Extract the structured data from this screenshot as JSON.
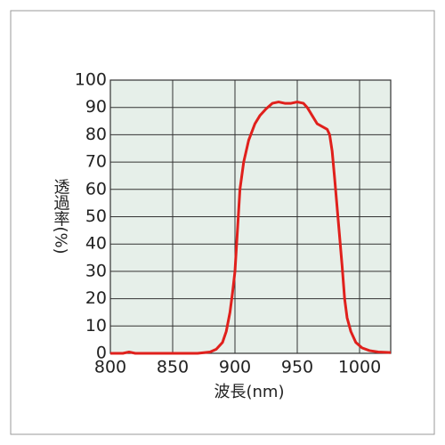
{
  "chart_data": {
    "type": "line",
    "xlabel": "波長(nm)",
    "ylabel": "透過率(%)",
    "x": [
      800,
      810,
      815,
      820,
      850,
      870,
      880,
      885,
      890,
      893,
      896,
      898,
      900,
      902,
      904,
      907,
      911,
      916,
      920,
      925,
      930,
      935,
      940,
      945,
      950,
      955,
      958,
      962,
      966,
      970,
      974,
      976,
      978,
      980,
      983,
      986,
      988,
      990,
      993,
      997,
      1002,
      1008,
      1015,
      1025
    ],
    "values": [
      0,
      0,
      0.5,
      0,
      0,
      0,
      0.5,
      1.5,
      4,
      8,
      15,
      22,
      30,
      45,
      60,
      70,
      78,
      84,
      87,
      89.5,
      91.5,
      92,
      91.5,
      91.5,
      92,
      91.5,
      90,
      87,
      84,
      83,
      82,
      80,
      74,
      64,
      48,
      32,
      20,
      13,
      8,
      4,
      2,
      1,
      0.5,
      0.3
    ],
    "color": "#e0201c",
    "xlim": [
      800,
      1025
    ],
    "xticks": [
      800,
      850,
      900,
      950,
      1000
    ],
    "ylim": [
      0,
      100
    ],
    "yticks": [
      0,
      10,
      20,
      30,
      40,
      50,
      60,
      70,
      80,
      90,
      100
    ],
    "grid": true
  }
}
